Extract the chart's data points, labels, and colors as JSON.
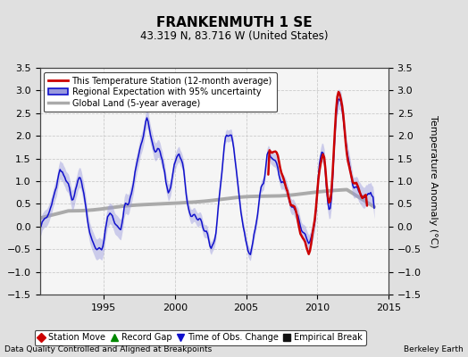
{
  "title": "FRANKENMUTH 1 SE",
  "subtitle": "43.319 N, 83.716 W (United States)",
  "ylabel": "Temperature Anomaly (°C)",
  "xlabel_left": "Data Quality Controlled and Aligned at Breakpoints",
  "xlabel_right": "Berkeley Earth",
  "ylim": [
    -1.5,
    3.5
  ],
  "xlim": [
    1990.5,
    2014.5
  ],
  "xticks": [
    1995,
    2000,
    2005,
    2010,
    2015
  ],
  "yticks": [
    -1.5,
    -1.0,
    -0.5,
    0.0,
    0.5,
    1.0,
    1.5,
    2.0,
    2.5,
    3.0,
    3.5
  ],
  "line_color_station": "#cc0000",
  "line_color_regional": "#1010cc",
  "fill_color_regional": "#9999dd",
  "line_color_global": "#aaaaaa",
  "fig_bg": "#e0e0e0",
  "plot_bg": "#f5f5f5",
  "legend_items": [
    {
      "label": "This Temperature Station (12-month average)",
      "color": "#cc0000",
      "lw": 2.0
    },
    {
      "label": "Regional Expectation with 95% uncertainty",
      "color": "#1010cc",
      "lw": 1.5
    },
    {
      "label": "Global Land (5-year average)",
      "color": "#aaaaaa",
      "lw": 2.5
    }
  ],
  "bottom_legend": [
    {
      "label": "Station Move",
      "color": "#cc0000",
      "marker": "D"
    },
    {
      "label": "Record Gap",
      "color": "#008800",
      "marker": "^"
    },
    {
      "label": "Time of Obs. Change",
      "color": "#1010cc",
      "marker": "v"
    },
    {
      "label": "Empirical Break",
      "color": "#111111",
      "marker": "s"
    }
  ]
}
